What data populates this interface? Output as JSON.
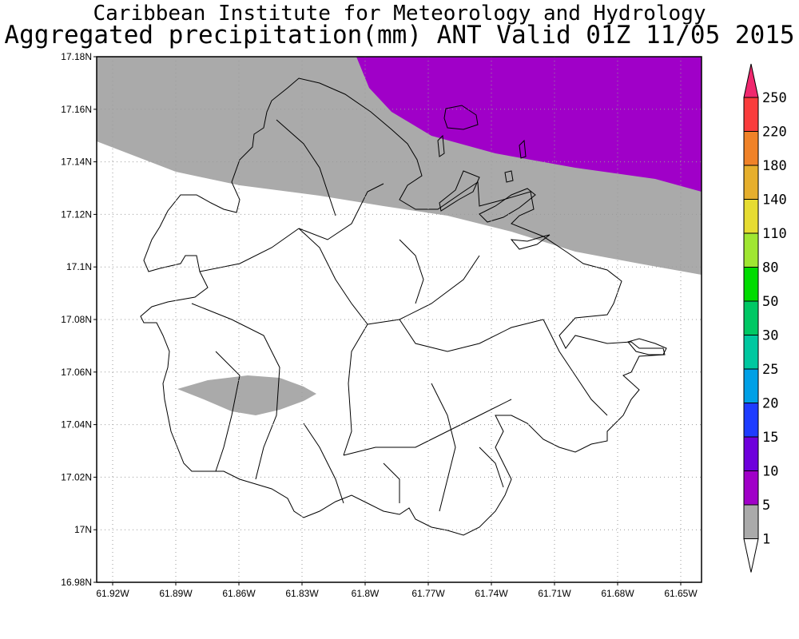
{
  "title": "Caribbean Institute for Meteorology and Hydrology",
  "subtitle": "Aggregated precipitation(mm) ANT Valid 01Z 11/05 2015",
  "map": {
    "region": "Antigua",
    "lon_range": [
      -61.925,
      -61.645
    ],
    "lat_range": [
      16.98,
      17.18
    ],
    "lat_ticks": [
      "17.18N",
      "17.16N",
      "17.14N",
      "17.12N",
      "17.1N",
      "17.08N",
      "17.06N",
      "17.04N",
      "17.02N",
      "17N",
      "16.98N"
    ],
    "lon_ticks": [
      "61.92W",
      "61.89W",
      "61.86W",
      "61.83W",
      "61.8W",
      "61.77W",
      "61.74W",
      "61.71W",
      "61.68W",
      "61.65W"
    ],
    "grid": "dotted",
    "legend_position": "right",
    "precip_areas": [
      {
        "category": "1-5 mm",
        "color": "#aaaaaa",
        "location": "northern band"
      },
      {
        "category": "5-10 mm",
        "color": "#a000c8",
        "location": "north-east corner"
      },
      {
        "category": "1-5 mm",
        "color": "#aaaaaa",
        "location": "south-west patch"
      }
    ]
  },
  "colorbar": {
    "levels": [
      "250",
      "220",
      "180",
      "140",
      "110",
      "80",
      "50",
      "30",
      "25",
      "20",
      "15",
      "10",
      "5",
      "1"
    ],
    "colors": [
      "#f0286e",
      "#fa3c3c",
      "#f08228",
      "#e6af2d",
      "#e6dc32",
      "#a0e632",
      "#00dc00",
      "#00c864",
      "#00c8a0",
      "#00a0e6",
      "#1e3cff",
      "#6e00dc",
      "#a000c8",
      "#aaaaaa",
      "#ffffff"
    ]
  }
}
